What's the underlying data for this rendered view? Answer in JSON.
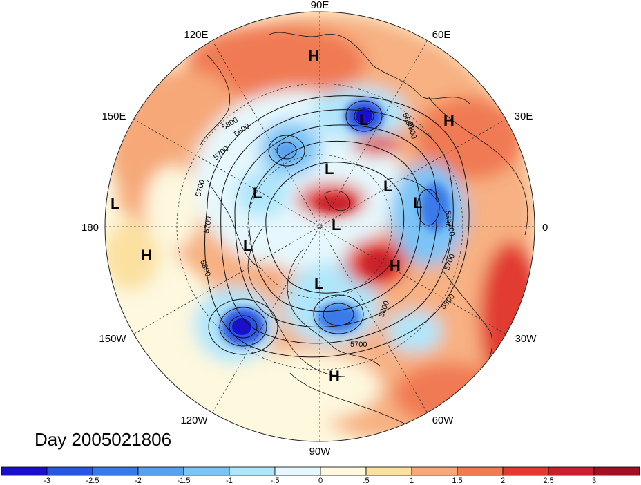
{
  "title": "Day 2005021806",
  "longitude_labels": [
    {
      "text": "90E",
      "key": "n"
    },
    {
      "text": "60E",
      "key": "nne"
    },
    {
      "text": "30E",
      "key": "ene"
    },
    {
      "text": "0",
      "key": "e"
    },
    {
      "text": "30W",
      "key": "ese"
    },
    {
      "text": "60W",
      "key": "sse"
    },
    {
      "text": "90W",
      "key": "s"
    },
    {
      "text": "120W",
      "key": "ssw"
    },
    {
      "text": "150W",
      "key": "wsw"
    },
    {
      "text": "180",
      "key": "w"
    },
    {
      "text": "150E",
      "key": "wnw"
    },
    {
      "text": "120E",
      "key": "nnw"
    }
  ],
  "pressure_markers": [
    {
      "letter": "H",
      "id": "h-siberia"
    },
    {
      "letter": "L",
      "id": "l-asia"
    },
    {
      "letter": "H",
      "id": "h-russia"
    },
    {
      "letter": "L",
      "id": "l-arctic-1"
    },
    {
      "letter": "L",
      "id": "l-bering"
    },
    {
      "letter": "L",
      "id": "l-west-pacific"
    },
    {
      "letter": "L",
      "id": "l-arctic-2"
    },
    {
      "letter": "L",
      "id": "l-norway"
    },
    {
      "letter": "L",
      "id": "l-pole"
    },
    {
      "letter": "L",
      "id": "l-alaska"
    },
    {
      "letter": "H",
      "id": "h-pacific"
    },
    {
      "letter": "H",
      "id": "h-greenland"
    },
    {
      "letter": "L",
      "id": "l-hudson"
    },
    {
      "letter": "H",
      "id": "h-mexico"
    }
  ],
  "contour_labels": [
    "5800",
    "5600",
    "5700",
    "5700",
    "5700",
    "5800",
    "5600",
    "5800",
    "5700",
    "5600",
    "5700",
    "5800",
    "5700",
    "5800"
  ],
  "colorbar": {
    "ticks": [
      "-3",
      "-2.5",
      "-2",
      "-1.5",
      "-1",
      "-.5",
      "0",
      ".5",
      "1",
      "1.5",
      "2",
      "2.5",
      "3"
    ],
    "colors": [
      "#1a10cc",
      "#2a55e0",
      "#3a7ae8",
      "#5aa0f0",
      "#7cc4f6",
      "#b0e6fb",
      "#e6f8fd",
      "#fdf8de",
      "#fbe0a0",
      "#f6a878",
      "#f07a52",
      "#e23a32",
      "#c8202c",
      "#a0101e"
    ]
  }
}
